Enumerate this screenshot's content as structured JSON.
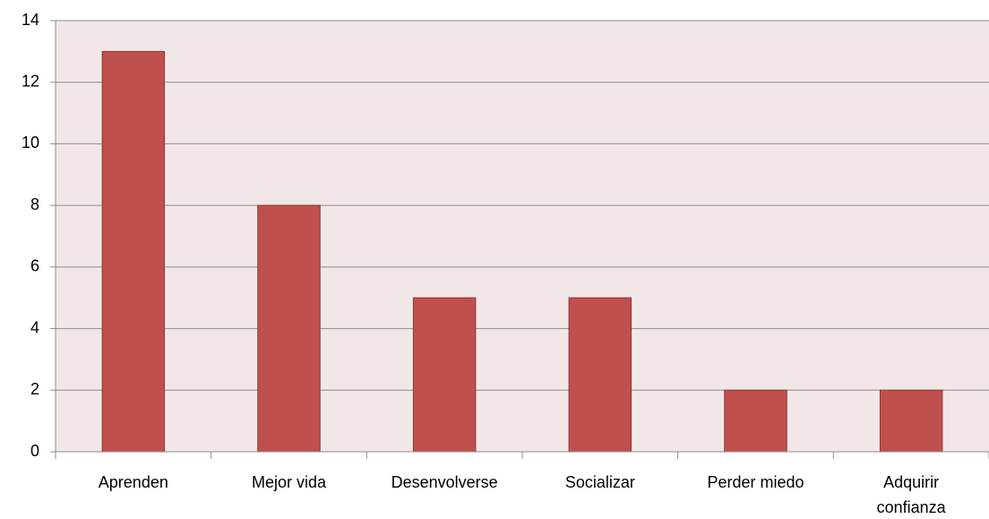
{
  "chart_data": {
    "type": "bar",
    "categories": [
      "Aprenden",
      "Mejor vida",
      "Desenvolverse",
      "Socializar",
      "Perder miedo",
      "Adquirir confianza"
    ],
    "values": [
      13,
      8,
      5,
      5,
      2,
      2
    ],
    "color": "#c0504d",
    "ylim": [
      0,
      14
    ],
    "yticks": [
      0,
      2,
      4,
      6,
      8,
      10,
      12,
      14
    ],
    "grid": true
  }
}
